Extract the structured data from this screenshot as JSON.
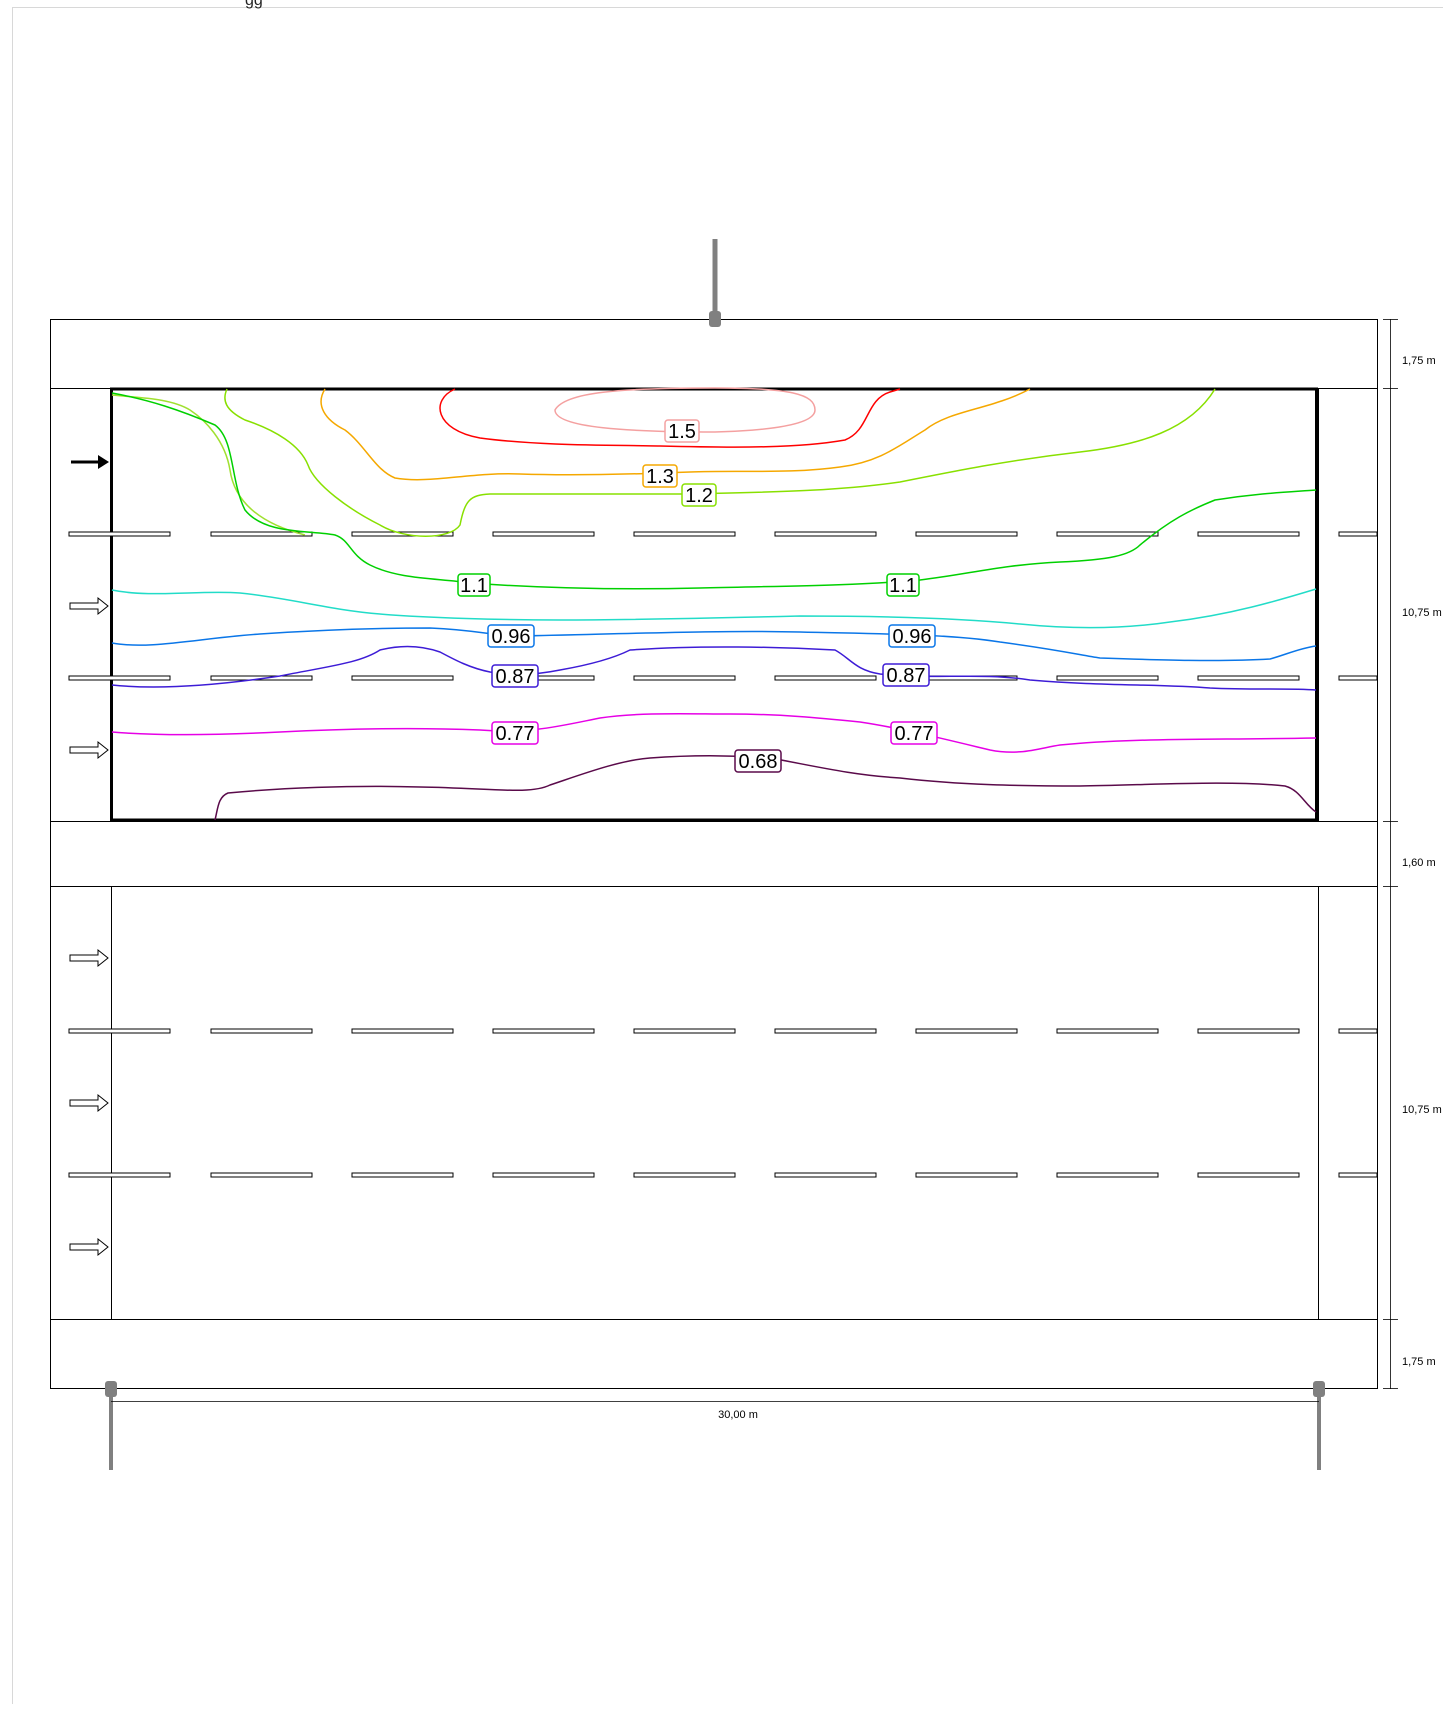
{
  "header": {
    "cropped_text": "gg"
  },
  "dimensions": {
    "width": "30,00 m",
    "heights": [
      "1,75 m",
      "10,75 m",
      "1,60 m",
      "10,75 m",
      "1,75 m"
    ]
  },
  "contours": [
    {
      "value": "1.5",
      "color": "#ff0000",
      "label_color": "#f4a2a2"
    },
    {
      "value": "1.3",
      "color": "#f5a800",
      "label_color": "#f5a800"
    },
    {
      "value": "1.2",
      "color": "#88e000",
      "label_color": "#88e000"
    },
    {
      "value": "1.1",
      "color": "#00d000",
      "label_color": "#00d000"
    },
    {
      "value": "0.96",
      "color": "#0a76e8",
      "label_color": "#0a76e8"
    },
    {
      "value": "0.87",
      "color": "#3d1cd6",
      "label_color": "#3d1cd6"
    },
    {
      "value": "0.77",
      "color": "#e600e6",
      "label_color": "#e600e6"
    },
    {
      "value": "0.68",
      "color": "#5a0a4a",
      "label_color": "#5a0a4a"
    }
  ],
  "extra_lines": [
    {
      "color": "#f4a0a0"
    },
    {
      "color": "#a0e030"
    },
    {
      "color": "#22dcc8"
    }
  ]
}
